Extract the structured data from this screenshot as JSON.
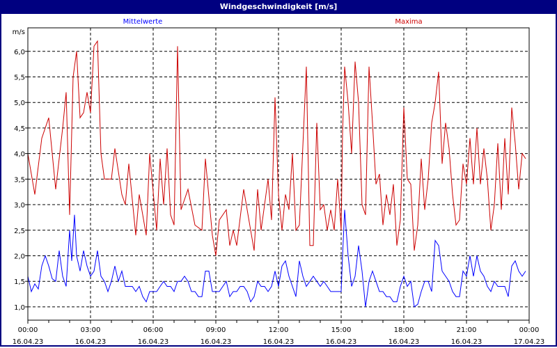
{
  "window": {
    "title": "Windgeschwindigkeit [m/s]"
  },
  "chart_data": {
    "type": "line",
    "title": "Windgeschwindigkeit [m/s]",
    "ylabel": "m/s",
    "xlabel": "",
    "ylim": [
      0.74,
      6.46
    ],
    "xlim_minutes": [
      0,
      1440
    ],
    "grid": true,
    "legend_placement": "top",
    "y_ticks": [
      {
        "value": 1.0,
        "label": "1,0"
      },
      {
        "value": 1.5,
        "label": "1,5"
      },
      {
        "value": 2.0,
        "label": "2,0"
      },
      {
        "value": 2.5,
        "label": "2,5"
      },
      {
        "value": 3.0,
        "label": "3,0"
      },
      {
        "value": 3.5,
        "label": "3,5"
      },
      {
        "value": 4.0,
        "label": "4,0"
      },
      {
        "value": 4.5,
        "label": "4,5"
      },
      {
        "value": 5.0,
        "label": "5,0"
      },
      {
        "value": 5.5,
        "label": "5,5"
      },
      {
        "value": 6.0,
        "label": "6,0"
      }
    ],
    "x_ticks": [
      {
        "minutes": 0,
        "time": "00:00",
        "date": "16.04.23"
      },
      {
        "minutes": 180,
        "time": "03:00",
        "date": "16.04.23"
      },
      {
        "minutes": 360,
        "time": "06:00",
        "date": "16.04.23"
      },
      {
        "minutes": 540,
        "time": "09:00",
        "date": "16.04.23"
      },
      {
        "minutes": 720,
        "time": "12:00",
        "date": "16.04.23"
      },
      {
        "minutes": 900,
        "time": "15:00",
        "date": "16.04.23"
      },
      {
        "minutes": 1080,
        "time": "18:00",
        "date": "16.04.23"
      },
      {
        "minutes": 1260,
        "time": "21:00",
        "date": "16.04.23"
      },
      {
        "minutes": 1440,
        "time": "00:00",
        "date": "17.04.23"
      }
    ],
    "series": [
      {
        "name": "Mittelwerte",
        "color": "#0000ff",
        "points": [
          [
            0,
            1.6
          ],
          [
            10,
            1.3
          ],
          [
            20,
            1.45
          ],
          [
            30,
            1.35
          ],
          [
            40,
            1.8
          ],
          [
            50,
            2.0
          ],
          [
            60,
            1.8
          ],
          [
            70,
            1.55
          ],
          [
            80,
            1.5
          ],
          [
            90,
            2.1
          ],
          [
            100,
            1.6
          ],
          [
            110,
            1.4
          ],
          [
            120,
            2.5
          ],
          [
            126,
            1.9
          ],
          [
            134,
            2.8
          ],
          [
            140,
            2.0
          ],
          [
            150,
            1.7
          ],
          [
            160,
            2.1
          ],
          [
            170,
            1.8
          ],
          [
            180,
            1.6
          ],
          [
            190,
            1.7
          ],
          [
            200,
            2.1
          ],
          [
            210,
            1.6
          ],
          [
            220,
            1.5
          ],
          [
            230,
            1.3
          ],
          [
            240,
            1.5
          ],
          [
            250,
            1.8
          ],
          [
            260,
            1.5
          ],
          [
            270,
            1.7
          ],
          [
            280,
            1.4
          ],
          [
            300,
            1.4
          ],
          [
            310,
            1.3
          ],
          [
            320,
            1.4
          ],
          [
            330,
            1.2
          ],
          [
            340,
            1.1
          ],
          [
            350,
            1.3
          ],
          [
            370,
            1.3
          ],
          [
            380,
            1.4
          ],
          [
            390,
            1.5
          ],
          [
            400,
            1.4
          ],
          [
            410,
            1.4
          ],
          [
            420,
            1.3
          ],
          [
            430,
            1.5
          ],
          [
            440,
            1.5
          ],
          [
            450,
            1.6
          ],
          [
            460,
            1.5
          ],
          [
            470,
            1.3
          ],
          [
            480,
            1.3
          ],
          [
            490,
            1.2
          ],
          [
            500,
            1.2
          ],
          [
            510,
            1.7
          ],
          [
            520,
            1.7
          ],
          [
            530,
            1.3
          ],
          [
            550,
            1.3
          ],
          [
            560,
            1.4
          ],
          [
            570,
            1.5
          ],
          [
            580,
            1.2
          ],
          [
            590,
            1.3
          ],
          [
            600,
            1.3
          ],
          [
            610,
            1.4
          ],
          [
            620,
            1.4
          ],
          [
            630,
            1.3
          ],
          [
            640,
            1.1
          ],
          [
            650,
            1.2
          ],
          [
            660,
            1.5
          ],
          [
            670,
            1.4
          ],
          [
            680,
            1.4
          ],
          [
            690,
            1.3
          ],
          [
            700,
            1.4
          ],
          [
            710,
            1.7
          ],
          [
            720,
            1.4
          ],
          [
            730,
            1.8
          ],
          [
            740,
            1.9
          ],
          [
            750,
            1.6
          ],
          [
            760,
            1.4
          ],
          [
            770,
            1.2
          ],
          [
            780,
            1.9
          ],
          [
            790,
            1.6
          ],
          [
            800,
            1.4
          ],
          [
            810,
            1.5
          ],
          [
            820,
            1.6
          ],
          [
            830,
            1.5
          ],
          [
            840,
            1.4
          ],
          [
            850,
            1.5
          ],
          [
            860,
            1.4
          ],
          [
            870,
            1.3
          ],
          [
            880,
            1.3
          ],
          [
            900,
            1.3
          ],
          [
            904,
            2.0
          ],
          [
            910,
            2.9
          ],
          [
            920,
            2.0
          ],
          [
            930,
            1.4
          ],
          [
            940,
            1.6
          ],
          [
            950,
            2.2
          ],
          [
            960,
            1.7
          ],
          [
            970,
            1.0
          ],
          [
            980,
            1.5
          ],
          [
            990,
            1.7
          ],
          [
            1000,
            1.5
          ],
          [
            1010,
            1.3
          ],
          [
            1020,
            1.3
          ],
          [
            1030,
            1.2
          ],
          [
            1040,
            1.2
          ],
          [
            1050,
            1.1
          ],
          [
            1060,
            1.1
          ],
          [
            1070,
            1.4
          ],
          [
            1080,
            1.6
          ],
          [
            1090,
            1.4
          ],
          [
            1100,
            1.5
          ],
          [
            1110,
            1.0
          ],
          [
            1120,
            1.05
          ],
          [
            1130,
            1.3
          ],
          [
            1140,
            1.5
          ],
          [
            1150,
            1.5
          ],
          [
            1160,
            1.3
          ],
          [
            1170,
            2.3
          ],
          [
            1180,
            2.2
          ],
          [
            1190,
            1.7
          ],
          [
            1200,
            1.6
          ],
          [
            1210,
            1.5
          ],
          [
            1220,
            1.3
          ],
          [
            1230,
            1.2
          ],
          [
            1240,
            1.2
          ],
          [
            1250,
            1.7
          ],
          [
            1260,
            1.6
          ],
          [
            1270,
            2.0
          ],
          [
            1280,
            1.6
          ],
          [
            1290,
            2.0
          ],
          [
            1300,
            1.7
          ],
          [
            1310,
            1.6
          ],
          [
            1320,
            1.4
          ],
          [
            1330,
            1.3
          ],
          [
            1340,
            1.5
          ],
          [
            1350,
            1.4
          ],
          [
            1360,
            1.4
          ],
          [
            1370,
            1.4
          ],
          [
            1380,
            1.2
          ],
          [
            1390,
            1.8
          ],
          [
            1400,
            1.9
          ],
          [
            1410,
            1.7
          ],
          [
            1420,
            1.6
          ],
          [
            1430,
            1.7
          ]
        ]
      },
      {
        "name": "Maxima",
        "color": "#cc0000",
        "points": [
          [
            0,
            4.0
          ],
          [
            20,
            3.2
          ],
          [
            40,
            4.3
          ],
          [
            60,
            4.7
          ],
          [
            80,
            3.3
          ],
          [
            100,
            4.5
          ],
          [
            110,
            5.2
          ],
          [
            120,
            2.8
          ],
          [
            130,
            5.5
          ],
          [
            140,
            6.0
          ],
          [
            150,
            4.7
          ],
          [
            160,
            4.8
          ],
          [
            170,
            5.2
          ],
          [
            180,
            4.8
          ],
          [
            190,
            6.1
          ],
          [
            200,
            6.2
          ],
          [
            210,
            4.0
          ],
          [
            220,
            3.5
          ],
          [
            240,
            3.5
          ],
          [
            250,
            4.1
          ],
          [
            270,
            3.2
          ],
          [
            280,
            3.0
          ],
          [
            290,
            3.8
          ],
          [
            310,
            2.4
          ],
          [
            320,
            3.2
          ],
          [
            340,
            2.4
          ],
          [
            350,
            4.0
          ],
          [
            370,
            2.5
          ],
          [
            380,
            3.9
          ],
          [
            390,
            3.0
          ],
          [
            400,
            4.1
          ],
          [
            410,
            2.8
          ],
          [
            420,
            2.6
          ],
          [
            430,
            6.1
          ],
          [
            440,
            2.9
          ],
          [
            460,
            3.3
          ],
          [
            480,
            2.6
          ],
          [
            500,
            2.5
          ],
          [
            510,
            3.9
          ],
          [
            530,
            2.4
          ],
          [
            540,
            2.0
          ],
          [
            550,
            2.7
          ],
          [
            570,
            2.9
          ],
          [
            580,
            2.2
          ],
          [
            590,
            2.5
          ],
          [
            600,
            2.2
          ],
          [
            620,
            3.3
          ],
          [
            640,
            2.5
          ],
          [
            650,
            2.1
          ],
          [
            660,
            3.3
          ],
          [
            670,
            2.5
          ],
          [
            690,
            3.5
          ],
          [
            700,
            2.7
          ],
          [
            710,
            5.1
          ],
          [
            720,
            3.2
          ],
          [
            730,
            2.5
          ],
          [
            740,
            3.2
          ],
          [
            750,
            2.9
          ],
          [
            760,
            4.0
          ],
          [
            770,
            2.5
          ],
          [
            780,
            2.6
          ],
          [
            800,
            5.7
          ],
          [
            810,
            2.2
          ],
          [
            820,
            2.2
          ],
          [
            830,
            4.6
          ],
          [
            840,
            2.9
          ],
          [
            850,
            3.0
          ],
          [
            860,
            2.5
          ],
          [
            870,
            2.9
          ],
          [
            880,
            2.5
          ],
          [
            890,
            3.5
          ],
          [
            900,
            2.5
          ],
          [
            904,
            4.4
          ],
          [
            910,
            5.7
          ],
          [
            920,
            5.0
          ],
          [
            930,
            4.0
          ],
          [
            940,
            5.8
          ],
          [
            950,
            5.0
          ],
          [
            960,
            3.0
          ],
          [
            970,
            2.8
          ],
          [
            980,
            5.7
          ],
          [
            990,
            4.6
          ],
          [
            1000,
            3.4
          ],
          [
            1010,
            3.6
          ],
          [
            1020,
            2.6
          ],
          [
            1030,
            3.2
          ],
          [
            1040,
            2.8
          ],
          [
            1050,
            3.4
          ],
          [
            1060,
            2.2
          ],
          [
            1070,
            2.7
          ],
          [
            1080,
            4.9
          ],
          [
            1090,
            3.5
          ],
          [
            1100,
            3.4
          ],
          [
            1110,
            2.1
          ],
          [
            1120,
            2.6
          ],
          [
            1130,
            3.9
          ],
          [
            1140,
            2.9
          ],
          [
            1150,
            3.5
          ],
          [
            1160,
            4.6
          ],
          [
            1170,
            5.0
          ],
          [
            1180,
            5.6
          ],
          [
            1190,
            3.8
          ],
          [
            1200,
            4.6
          ],
          [
            1210,
            4.1
          ],
          [
            1220,
            3.2
          ],
          [
            1230,
            2.6
          ],
          [
            1240,
            2.7
          ],
          [
            1250,
            3.8
          ],
          [
            1260,
            3.4
          ],
          [
            1270,
            4.3
          ],
          [
            1280,
            3.4
          ],
          [
            1290,
            4.5
          ],
          [
            1300,
            3.4
          ],
          [
            1310,
            4.1
          ],
          [
            1320,
            3.5
          ],
          [
            1330,
            2.5
          ],
          [
            1340,
            3.0
          ],
          [
            1350,
            4.2
          ],
          [
            1360,
            2.9
          ],
          [
            1370,
            4.3
          ],
          [
            1380,
            3.2
          ],
          [
            1390,
            4.9
          ],
          [
            1400,
            4.2
          ],
          [
            1410,
            3.3
          ],
          [
            1420,
            4.0
          ],
          [
            1430,
            3.9
          ]
        ]
      }
    ]
  }
}
